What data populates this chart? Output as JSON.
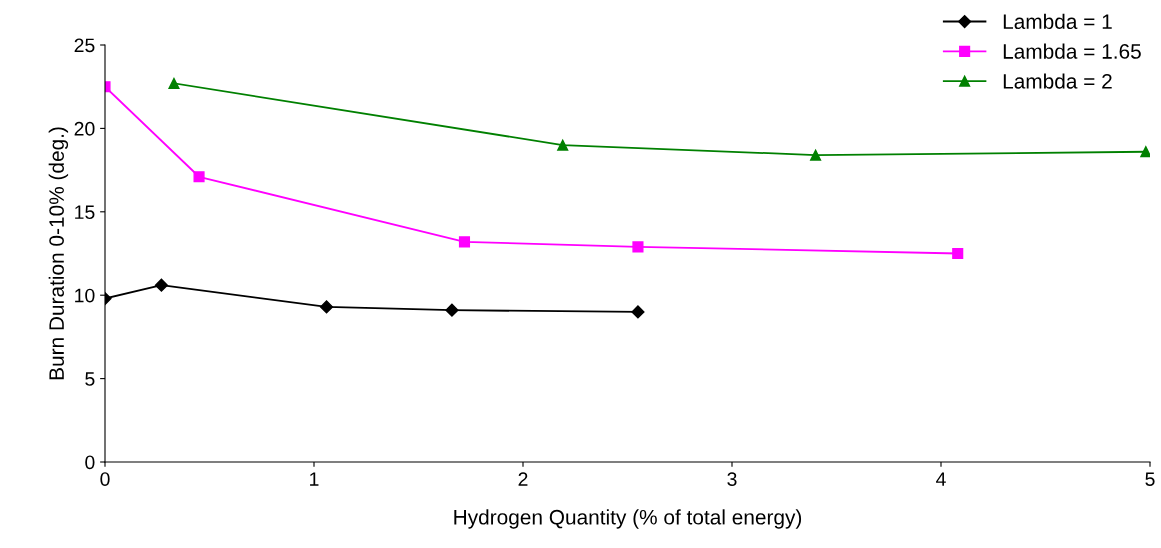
{
  "chart_data": {
    "type": "line",
    "xlabel": "Hydrogen Quantity (% of total energy)",
    "ylabel": "Burn Duration 0-10% (deg.)",
    "xlim": [
      0,
      5
    ],
    "xticks": [
      0,
      1,
      2,
      3,
      4,
      5
    ],
    "ylim": [
      0,
      25
    ],
    "yticks": [
      0,
      5,
      10,
      15,
      20,
      25
    ],
    "grid": false,
    "legend": "top right",
    "series": [
      {
        "name": "Lambda = 1",
        "color": "#000000",
        "marker": "diamond",
        "x": [
          0,
          0.27,
          1.06,
          1.66,
          2.55
        ],
        "values": [
          9.8,
          10.6,
          9.3,
          9.1,
          9.0
        ]
      },
      {
        "name": "Lambda = 1.65",
        "color": "#ff00ff",
        "marker": "square",
        "x": [
          0,
          0.45,
          1.72,
          2.55,
          4.08
        ],
        "values": [
          22.5,
          17.1,
          13.2,
          12.9,
          12.5
        ]
      },
      {
        "name": "Lambda = 2",
        "color": "#008000",
        "marker": "triangle",
        "x": [
          0.33,
          2.19,
          3.4,
          4.98
        ],
        "values": [
          22.7,
          19.0,
          18.4,
          18.6
        ]
      }
    ]
  }
}
